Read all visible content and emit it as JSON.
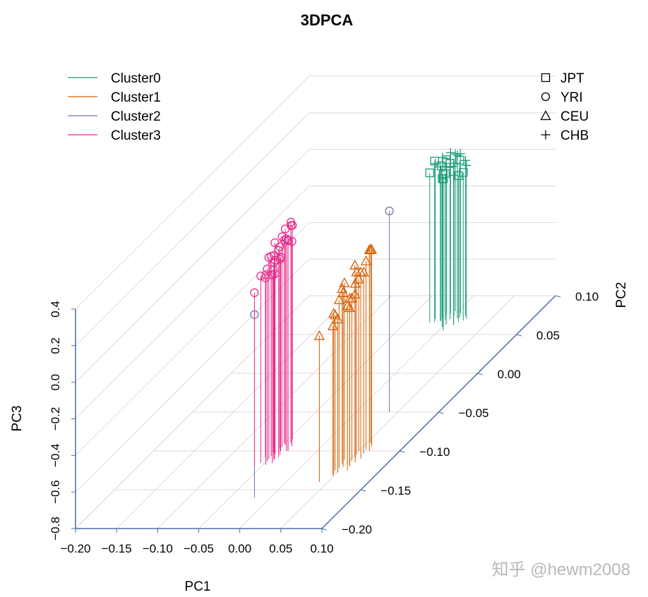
{
  "chart_data": {
    "type": "scatter",
    "title": "3DPCA",
    "xlabel": "PC1",
    "ylabel": "PC2",
    "zlabel": "PC3",
    "xlim": [
      -0.2,
      0.1
    ],
    "ylim": [
      -0.2,
      0.1
    ],
    "zlim": [
      -0.8,
      0.4
    ],
    "xticks": [
      "−0.20",
      "−0.15",
      "−0.10",
      "−0.05",
      "0.00",
      "0.05",
      "0.10"
    ],
    "yticks": [
      "−0.20",
      "−0.15",
      "−0.10",
      "−0.05",
      "0.00",
      "0.05",
      "0.10"
    ],
    "zticks": [
      "−0.8",
      "−0.6",
      "−0.4",
      "−0.2",
      "0.0",
      "0.2",
      "0.4"
    ],
    "grid": true,
    "color_legend": [
      {
        "name": "Cluster0",
        "color": "#1b9e77"
      },
      {
        "name": "Cluster1",
        "color": "#d95f02"
      },
      {
        "name": "Cluster2",
        "color": "#7570b3"
      },
      {
        "name": "Cluster3",
        "color": "#e7298a"
      }
    ],
    "shape_legend": [
      {
        "name": "JPT",
        "symbol": "square"
      },
      {
        "name": "YRI",
        "symbol": "circle"
      },
      {
        "name": "CEU",
        "symbol": "triangle"
      },
      {
        "name": "CHB",
        "symbol": "plus"
      }
    ],
    "legend_position": "top",
    "series": [
      {
        "cluster": "Cluster0",
        "shapes": [
          "square",
          "plus"
        ],
        "points": [
          [
            0.0,
            0.07,
            0.05
          ],
          [
            -0.01,
            0.068,
            0.04
          ],
          [
            0.01,
            0.072,
            0.06
          ],
          [
            0.0,
            0.075,
            0.03
          ],
          [
            -0.02,
            0.065,
            0.02
          ],
          [
            0.005,
            0.078,
            0.07
          ],
          [
            -0.005,
            0.069,
            0.0
          ],
          [
            0.015,
            0.074,
            0.05
          ],
          [
            -0.015,
            0.066,
            0.08
          ],
          [
            0.02,
            0.07,
            0.04
          ],
          [
            0.0,
            0.06,
            0.01
          ],
          [
            0.01,
            0.064,
            0.06
          ],
          [
            -0.01,
            0.076,
            0.03
          ],
          [
            0.008,
            0.071,
            0.09
          ],
          [
            -0.008,
            0.067,
            0.05
          ],
          [
            0.012,
            0.062,
            0.02
          ],
          [
            0.003,
            0.058,
            0.04
          ],
          [
            -0.012,
            0.073,
            0.07
          ],
          [
            0.018,
            0.068,
            0.01
          ],
          [
            -0.003,
            0.08,
            0.06
          ],
          [
            0.006,
            0.055,
            0.03
          ],
          [
            -0.006,
            0.077,
            0.08
          ],
          [
            0.014,
            0.066,
            0.0
          ],
          [
            -0.018,
            0.07,
            0.05
          ],
          [
            0.002,
            0.063,
            0.1
          ]
        ]
      },
      {
        "cluster": "Cluster1",
        "shapes": [
          "triangle"
        ],
        "points": [
          [
            0.05,
            -0.12,
            0.15
          ],
          [
            0.055,
            -0.11,
            0.1
          ],
          [
            0.06,
            -0.115,
            0.18
          ],
          [
            0.045,
            -0.125,
            0.05
          ],
          [
            0.052,
            -0.105,
            0.2
          ],
          [
            0.058,
            -0.12,
            0.12
          ],
          [
            0.048,
            -0.13,
            0.08
          ],
          [
            0.062,
            -0.11,
            0.22
          ],
          [
            0.05,
            -0.1,
            0.14
          ],
          [
            0.056,
            -0.118,
            0.06
          ],
          [
            0.044,
            -0.112,
            0.17
          ],
          [
            0.06,
            -0.125,
            0.1
          ],
          [
            0.053,
            -0.108,
            0.25
          ],
          [
            0.047,
            -0.122,
            0.12
          ],
          [
            0.059,
            -0.103,
            0.19
          ],
          [
            0.051,
            -0.128,
            0.04
          ],
          [
            0.057,
            -0.098,
            0.23
          ],
          [
            0.046,
            -0.117,
            0.16
          ],
          [
            0.054,
            -0.113,
            0.09
          ],
          [
            0.061,
            -0.095,
            0.28
          ],
          [
            0.049,
            -0.132,
            0.02
          ],
          [
            0.055,
            -0.09,
            0.26
          ],
          [
            0.063,
            -0.1,
            0.3
          ],
          [
            0.04,
            -0.14,
            0.0
          ]
        ]
      },
      {
        "cluster": "Cluster2",
        "shapes": [
          "circle"
        ],
        "points": [
          [
            -0.02,
            -0.16,
            0.2
          ],
          [
            0.04,
            -0.05,
            0.3
          ]
        ]
      },
      {
        "cluster": "Cluster3",
        "shapes": [
          "circle"
        ],
        "points": [
          [
            -0.05,
            -0.11,
            0.3
          ],
          [
            -0.045,
            -0.1,
            0.26
          ],
          [
            -0.04,
            -0.108,
            0.33
          ],
          [
            -0.055,
            -0.115,
            0.22
          ],
          [
            -0.048,
            -0.095,
            0.35
          ],
          [
            -0.042,
            -0.112,
            0.28
          ],
          [
            -0.052,
            -0.102,
            0.2
          ],
          [
            -0.038,
            -0.1,
            0.36
          ],
          [
            -0.05,
            -0.09,
            0.31
          ],
          [
            -0.046,
            -0.118,
            0.24
          ],
          [
            -0.041,
            -0.105,
            0.27
          ],
          [
            -0.054,
            -0.098,
            0.33
          ],
          [
            -0.047,
            -0.092,
            0.38
          ],
          [
            -0.043,
            -0.11,
            0.21
          ],
          [
            -0.051,
            -0.106,
            0.29
          ],
          [
            -0.039,
            -0.097,
            0.34
          ],
          [
            -0.049,
            -0.113,
            0.25
          ],
          [
            -0.044,
            -0.088,
            0.4
          ],
          [
            -0.053,
            -0.1,
            0.27
          ],
          [
            -0.037,
            -0.094,
            0.32
          ],
          [
            -0.056,
            -0.108,
            0.18
          ],
          [
            -0.045,
            -0.085,
            0.37
          ],
          [
            -0.04,
            -0.116,
            0.23
          ],
          [
            -0.05,
            -0.096,
            0.3
          ],
          [
            -0.058,
            -0.12,
            0.15
          ],
          [
            -0.042,
            -0.09,
            0.39
          ],
          [
            -0.048,
            -0.104,
            0.26
          ],
          [
            -0.036,
            -0.1,
            0.35
          ]
        ]
      }
    ]
  },
  "watermark": "知乎 @hewm2008"
}
